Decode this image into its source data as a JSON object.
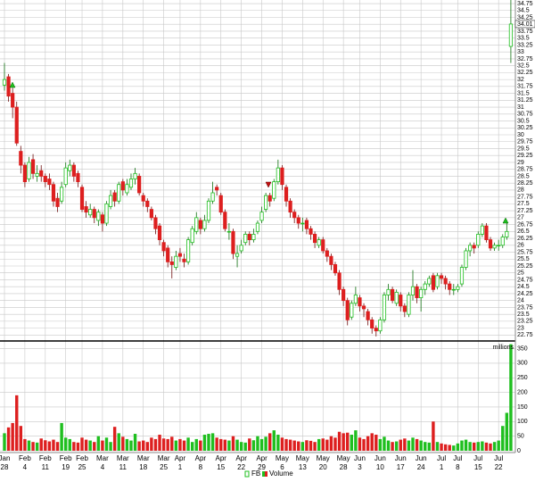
{
  "chart_data": {
    "type": "candlestick",
    "price_name": "FB",
    "volume_name": "Volume",
    "volume_unit": "millions",
    "up_color": "#1fbf1f",
    "down_color": "#dd1f1f",
    "grid": true,
    "ylim": [
      22.6,
      34.88
    ],
    "yticks": [
      22.75,
      23,
      23.25,
      23.5,
      23.75,
      24,
      24.25,
      24.5,
      24.75,
      25,
      25.25,
      25.5,
      25.75,
      26,
      26.25,
      26.5,
      26.75,
      27,
      27.25,
      27.5,
      27.75,
      28,
      28.25,
      28.5,
      28.75,
      29,
      29.25,
      29.5,
      29.75,
      30,
      30.25,
      30.5,
      30.75,
      31,
      31.25,
      31.5,
      31.75,
      32,
      32.25,
      32.5,
      32.75,
      33,
      33.25,
      33.5,
      33.75,
      34,
      34.25,
      34.5,
      34.75
    ],
    "volume_ylim": [
      0,
      370
    ],
    "volume_yticks": [
      0,
      50,
      100,
      150,
      200,
      250,
      300,
      350
    ],
    "dates": [
      {
        "month": "Jan",
        "day": "28"
      },
      null,
      null,
      null,
      null,
      {
        "month": "Feb",
        "day": "4"
      },
      null,
      null,
      null,
      null,
      {
        "month": "Feb",
        "day": "11"
      },
      null,
      null,
      null,
      null,
      {
        "month": "Feb",
        "day": "19"
      },
      null,
      null,
      null,
      {
        "month": "Feb",
        "day": "25"
      },
      null,
      null,
      null,
      null,
      {
        "month": "Mar",
        "day": "4"
      },
      null,
      null,
      null,
      null,
      {
        "month": "Mar",
        "day": "11"
      },
      null,
      null,
      null,
      null,
      {
        "month": "Mar",
        "day": "18"
      },
      null,
      null,
      null,
      null,
      {
        "month": "Mar",
        "day": "25"
      },
      null,
      null,
      null,
      {
        "month": "Apr",
        "day": "1"
      },
      null,
      null,
      null,
      null,
      {
        "month": "Apr",
        "day": "8"
      },
      null,
      null,
      null,
      null,
      {
        "month": "Apr",
        "day": "15"
      },
      null,
      null,
      null,
      null,
      {
        "month": "Apr",
        "day": "22"
      },
      null,
      null,
      null,
      null,
      {
        "month": "Apr",
        "day": "29"
      },
      null,
      null,
      null,
      null,
      {
        "month": "May",
        "day": "6"
      },
      null,
      null,
      null,
      null,
      {
        "month": "May",
        "day": "13"
      },
      null,
      null,
      null,
      null,
      {
        "month": "May",
        "day": "20"
      },
      null,
      null,
      null,
      null,
      {
        "month": "May",
        "day": "28"
      },
      null,
      null,
      null,
      {
        "month": "Jun",
        "day": "3"
      },
      null,
      null,
      null,
      null,
      {
        "month": "Jun",
        "day": "10"
      },
      null,
      null,
      null,
      null,
      {
        "month": "Jun",
        "day": "17"
      },
      null,
      null,
      null,
      null,
      {
        "month": "Jun",
        "day": "24"
      },
      null,
      null,
      null,
      null,
      {
        "month": "Jul",
        "day": "1"
      },
      null,
      null,
      null,
      {
        "month": "Jul",
        "day": "8"
      },
      null,
      null,
      null,
      null,
      {
        "month": "Jul",
        "day": "15"
      },
      null,
      null,
      null,
      null,
      {
        "month": "Jul",
        "day": "22"
      },
      null,
      null,
      null
    ],
    "candles": [
      [
        31.8,
        32.6,
        31.6,
        32.0
      ],
      [
        32.1,
        32.2,
        31.2,
        31.4
      ],
      [
        31.5,
        31.7,
        30.6,
        31.0
      ],
      [
        31.0,
        31.2,
        29.6,
        29.7
      ],
      [
        29.4,
        29.6,
        28.6,
        28.9
      ],
      [
        28.9,
        29.0,
        28.1,
        28.3
      ],
      [
        28.4,
        29.2,
        28.3,
        29.0
      ],
      [
        29.1,
        29.3,
        28.4,
        28.6
      ],
      [
        28.5,
        28.9,
        28.3,
        28.6
      ],
      [
        28.7,
        28.9,
        28.3,
        28.5
      ],
      [
        28.5,
        28.6,
        28.1,
        28.3
      ],
      [
        28.4,
        28.6,
        28.0,
        28.2
      ],
      [
        28.2,
        28.3,
        27.4,
        27.6
      ],
      [
        27.7,
        27.9,
        27.2,
        27.4
      ],
      [
        27.6,
        28.3,
        27.5,
        28.1
      ],
      [
        28.2,
        29.0,
        28.1,
        28.8
      ],
      [
        28.7,
        29.1,
        28.5,
        28.9
      ],
      [
        28.9,
        29.0,
        28.3,
        28.5
      ],
      [
        28.6,
        28.7,
        28.1,
        28.3
      ],
      [
        28.1,
        28.2,
        27.2,
        27.3
      ],
      [
        27.4,
        27.6,
        27.0,
        27.2
      ],
      [
        27.1,
        27.5,
        27.0,
        27.3
      ],
      [
        27.3,
        27.4,
        26.8,
        27.0
      ],
      [
        26.9,
        27.3,
        26.7,
        27.2
      ],
      [
        27.1,
        27.2,
        26.5,
        26.8
      ],
      [
        26.8,
        27.6,
        26.7,
        27.5
      ],
      [
        27.4,
        28.0,
        27.3,
        27.8
      ],
      [
        27.9,
        28.0,
        27.4,
        27.6
      ],
      [
        27.6,
        28.3,
        27.5,
        28.2
      ],
      [
        28.3,
        28.4,
        27.8,
        28.0
      ],
      [
        27.9,
        28.4,
        27.8,
        28.2
      ],
      [
        28.1,
        28.6,
        28.0,
        28.4
      ],
      [
        28.4,
        28.8,
        28.2,
        28.6
      ],
      [
        28.5,
        28.6,
        27.8,
        27.9
      ],
      [
        27.8,
        27.9,
        27.4,
        27.6
      ],
      [
        27.6,
        27.7,
        27.2,
        27.4
      ],
      [
        27.3,
        27.4,
        26.9,
        27.0
      ],
      [
        27.0,
        27.1,
        26.4,
        26.6
      ],
      [
        26.7,
        26.8,
        26.0,
        26.2
      ],
      [
        26.1,
        26.2,
        25.6,
        25.8
      ],
      [
        25.9,
        26.0,
        25.2,
        25.4
      ],
      [
        25.4,
        25.6,
        24.8,
        25.3
      ],
      [
        25.2,
        25.8,
        25.1,
        25.6
      ],
      [
        25.7,
        25.9,
        25.4,
        25.6
      ],
      [
        25.5,
        25.7,
        25.2,
        25.4
      ],
      [
        25.4,
        26.3,
        25.3,
        26.2
      ],
      [
        26.1,
        26.7,
        26.0,
        26.6
      ],
      [
        26.5,
        27.2,
        26.4,
        27.0
      ],
      [
        26.9,
        27.0,
        26.4,
        26.6
      ],
      [
        26.6,
        27.1,
        26.5,
        26.9
      ],
      [
        26.9,
        27.7,
        26.8,
        27.6
      ],
      [
        27.6,
        28.3,
        27.5,
        27.9
      ],
      [
        28.1,
        28.2,
        27.8,
        28.0
      ],
      [
        27.8,
        27.9,
        27.1,
        27.2
      ],
      [
        27.2,
        27.3,
        26.5,
        26.6
      ],
      [
        26.5,
        26.8,
        26.2,
        26.5
      ],
      [
        26.5,
        26.6,
        25.5,
        25.7
      ],
      [
        25.6,
        26.0,
        25.2,
        25.7
      ],
      [
        25.8,
        26.2,
        25.7,
        26.0
      ],
      [
        26.1,
        26.5,
        26.0,
        26.4
      ],
      [
        26.4,
        26.5,
        26.0,
        26.2
      ],
      [
        26.2,
        26.6,
        26.1,
        26.4
      ],
      [
        26.5,
        26.9,
        26.4,
        26.8
      ],
      [
        26.9,
        27.4,
        26.8,
        27.2
      ],
      [
        27.3,
        27.9,
        27.2,
        27.8
      ],
      [
        27.8,
        27.9,
        27.4,
        27.6
      ],
      [
        27.7,
        28.4,
        27.6,
        28.3
      ],
      [
        28.3,
        29.1,
        28.2,
        28.8
      ],
      [
        28.8,
        28.9,
        28.0,
        28.2
      ],
      [
        28.1,
        28.2,
        27.4,
        27.6
      ],
      [
        27.6,
        27.7,
        27.0,
        27.2
      ],
      [
        27.2,
        27.3,
        26.8,
        27.0
      ],
      [
        27.0,
        27.1,
        26.6,
        26.8
      ],
      [
        26.8,
        27.0,
        26.5,
        26.8
      ],
      [
        26.9,
        27.0,
        26.4,
        26.6
      ],
      [
        26.6,
        26.7,
        26.2,
        26.4
      ],
      [
        26.4,
        26.5,
        25.9,
        26.1
      ],
      [
        26.0,
        26.3,
        25.9,
        26.2
      ],
      [
        26.2,
        26.3,
        25.7,
        25.8
      ],
      [
        25.8,
        25.9,
        25.4,
        25.6
      ],
      [
        25.6,
        25.7,
        25.1,
        25.3
      ],
      [
        25.3,
        25.4,
        24.9,
        25.0
      ],
      [
        25.0,
        25.1,
        24.2,
        24.4
      ],
      [
        24.4,
        24.5,
        23.8,
        24.0
      ],
      [
        24.0,
        24.1,
        23.1,
        23.3
      ],
      [
        23.4,
        24.0,
        23.3,
        23.9
      ],
      [
        23.9,
        24.5,
        23.8,
        24.2
      ],
      [
        24.1,
        24.2,
        23.6,
        23.8
      ],
      [
        23.8,
        23.9,
        23.4,
        23.7
      ],
      [
        23.6,
        23.7,
        23.1,
        23.3
      ],
      [
        23.3,
        23.4,
        22.8,
        23.0
      ],
      [
        23.0,
        23.1,
        22.7,
        22.9
      ],
      [
        22.9,
        23.4,
        22.8,
        23.3
      ],
      [
        23.3,
        24.3,
        23.2,
        24.2
      ],
      [
        24.2,
        24.6,
        24.0,
        24.4
      ],
      [
        24.4,
        24.5,
        23.9,
        24.0
      ],
      [
        23.9,
        24.4,
        23.8,
        24.3
      ],
      [
        24.2,
        24.3,
        23.6,
        23.8
      ],
      [
        23.8,
        23.9,
        23.4,
        23.6
      ],
      [
        23.5,
        24.3,
        23.4,
        24.2
      ],
      [
        24.2,
        25.1,
        24.0,
        24.5
      ],
      [
        24.5,
        24.6,
        23.9,
        24.1
      ],
      [
        24.1,
        24.5,
        23.6,
        24.4
      ],
      [
        24.4,
        24.7,
        24.2,
        24.6
      ],
      [
        24.6,
        24.9,
        24.5,
        24.8
      ],
      [
        24.9,
        25.0,
        24.3,
        24.4
      ],
      [
        24.5,
        25.0,
        24.4,
        24.9
      ],
      [
        24.9,
        25.0,
        24.6,
        24.8
      ],
      [
        24.8,
        24.9,
        24.4,
        24.6
      ],
      [
        24.6,
        24.7,
        24.2,
        24.4
      ],
      [
        24.4,
        24.6,
        24.2,
        24.4
      ],
      [
        24.4,
        24.6,
        24.3,
        24.5
      ],
      [
        24.6,
        25.3,
        24.5,
        25.2
      ],
      [
        25.2,
        25.9,
        25.1,
        25.8
      ],
      [
        25.8,
        26.1,
        25.6,
        26.0
      ],
      [
        26.0,
        26.1,
        25.7,
        25.9
      ],
      [
        26.0,
        26.5,
        25.9,
        26.4
      ],
      [
        26.4,
        26.8,
        26.3,
        26.7
      ],
      [
        26.7,
        26.8,
        26.1,
        26.2
      ],
      [
        26.2,
        26.3,
        25.8,
        25.9
      ],
      [
        25.9,
        26.1,
        25.8,
        26.0
      ],
      [
        26.0,
        26.2,
        25.8,
        26.0
      ],
      [
        26.0,
        26.4,
        25.9,
        26.3
      ],
      [
        26.3,
        26.9,
        26.2,
        26.5
      ],
      [
        33.2,
        34.88,
        32.6,
        34.01
      ]
    ],
    "volume": [
      60,
      80,
      95,
      190,
      85,
      40,
      35,
      30,
      28,
      42,
      36,
      32,
      38,
      30,
      95,
      45,
      40,
      30,
      28,
      45,
      38,
      35,
      30,
      50,
      35,
      45,
      30,
      82,
      60,
      48,
      40,
      35,
      58,
      32,
      35,
      30,
      45,
      40,
      55,
      42,
      40,
      48,
      35,
      40,
      35,
      45,
      30,
      40,
      35,
      55,
      58,
      60,
      45,
      40,
      38,
      35,
      50,
      38,
      30,
      28,
      42,
      36,
      50,
      40,
      48,
      60,
      70,
      55,
      45,
      40,
      38,
      35,
      32,
      30,
      36,
      34,
      30,
      40,
      42,
      38,
      50,
      45,
      65,
      60,
      62,
      55,
      70,
      45,
      40,
      50,
      60,
      55,
      40,
      48,
      35,
      30,
      32,
      38,
      42,
      35,
      45,
      40,
      35,
      30,
      28,
      100,
      30,
      25,
      22,
      20,
      18,
      25,
      35,
      38,
      30,
      28,
      30,
      32,
      28,
      25,
      30,
      35,
      85,
      130,
      365
    ]
  }
}
